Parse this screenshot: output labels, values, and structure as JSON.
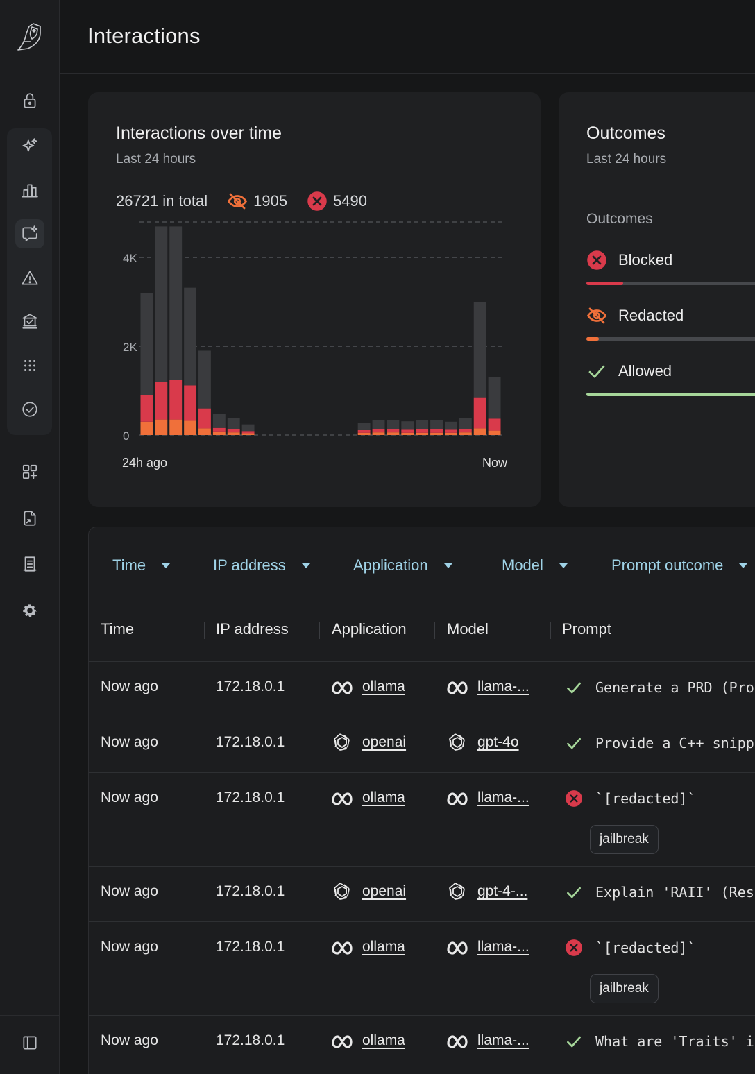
{
  "header": {
    "title": "Interactions"
  },
  "sidebar": {
    "items": [
      {
        "icon": "lock-icon"
      },
      {
        "icon": "sparkle-icon"
      },
      {
        "icon": "bar-chart-icon"
      },
      {
        "icon": "chat-sparkle-icon",
        "active": true
      },
      {
        "icon": "warning-icon"
      },
      {
        "icon": "bank-check-icon"
      },
      {
        "icon": "grid-dots-icon"
      },
      {
        "icon": "check-circle-icon"
      },
      {
        "icon": "apps-add-icon"
      },
      {
        "icon": "file-arrow-icon"
      },
      {
        "icon": "document-icon"
      },
      {
        "icon": "gear-icon"
      },
      {
        "icon": "sidebar-toggle-icon"
      }
    ]
  },
  "interactions_card": {
    "title": "Interactions over time",
    "subtitle": "Last 24 hours",
    "total_label": "26721 in total",
    "redacted_count": "1905",
    "blocked_count": "5490",
    "colors": {
      "allowed": "#3a3b3e",
      "blocked": "#d93a4b",
      "redacted": "#f0703a"
    }
  },
  "chart_data": {
    "type": "bar",
    "stacked": true,
    "title": "Interactions over time",
    "subtitle": "Last 24 hours",
    "x_tick_labels": [
      "24h ago",
      "Now"
    ],
    "y_ticks": [
      "0",
      "2K",
      "4K"
    ],
    "ylim": [
      0,
      4800
    ],
    "grid": true,
    "bins": 25,
    "series": [
      {
        "name": "Redacted",
        "color": "#f0703a",
        "values": [
          300,
          350,
          350,
          320,
          150,
          80,
          60,
          40,
          0,
          0,
          0,
          0,
          0,
          0,
          0,
          50,
          60,
          60,
          50,
          50,
          50,
          50,
          60,
          150,
          100
        ]
      },
      {
        "name": "Blocked",
        "color": "#d93a4b",
        "values": [
          600,
          850,
          900,
          800,
          450,
          80,
          80,
          50,
          0,
          0,
          0,
          0,
          0,
          0,
          0,
          60,
          80,
          80,
          70,
          80,
          80,
          70,
          80,
          700,
          270
        ]
      },
      {
        "name": "Allowed",
        "color": "#3a3b3e",
        "values": [
          2300,
          3500,
          3450,
          2200,
          1300,
          320,
          240,
          150,
          0,
          0,
          0,
          0,
          0,
          0,
          0,
          160,
          200,
          200,
          190,
          210,
          210,
          180,
          240,
          2150,
          930
        ]
      }
    ]
  },
  "outcomes_card": {
    "title": "Outcomes",
    "subtitle": "Last 24 hours",
    "section_label": "Outcomes",
    "items": [
      {
        "label": "Blocked",
        "color": "#d93a4b",
        "fraction": 0.205
      },
      {
        "label": "Redacted",
        "color": "#f0703a",
        "fraction": 0.071
      },
      {
        "label": "Allowed",
        "color": "#a6d69a",
        "fraction": 1.0
      }
    ]
  },
  "filters": [
    "Time",
    "IP address",
    "Application",
    "Model",
    "Prompt outcome"
  ],
  "table": {
    "columns": [
      "Time",
      "IP address",
      "Application",
      "Model",
      "Prompt"
    ],
    "rows": [
      {
        "time": "Now ago",
        "ip": "172.18.0.1",
        "app": "ollama",
        "app_icon": "meta-icon",
        "model": "llama-...",
        "model_icon": "meta-icon",
        "outcome": "allowed",
        "prompt": "Generate a PRD (Pro"
      },
      {
        "time": "Now ago",
        "ip": "172.18.0.1",
        "app": "openai",
        "app_icon": "openai-icon",
        "model": "gpt-4o",
        "model_icon": "openai-icon",
        "outcome": "allowed",
        "prompt": "Provide a C++ snipp"
      },
      {
        "time": "Now ago",
        "ip": "172.18.0.1",
        "app": "ollama",
        "app_icon": "meta-icon",
        "model": "llama-...",
        "model_icon": "meta-icon",
        "outcome": "blocked",
        "prompt": "`[redacted]`",
        "tag": "jailbreak"
      },
      {
        "time": "Now ago",
        "ip": "172.18.0.1",
        "app": "openai",
        "app_icon": "openai-icon",
        "model": "gpt-4-...",
        "model_icon": "openai-icon",
        "outcome": "allowed",
        "prompt": "Explain 'RAII' (Res"
      },
      {
        "time": "Now ago",
        "ip": "172.18.0.1",
        "app": "ollama",
        "app_icon": "meta-icon",
        "model": "llama-...",
        "model_icon": "meta-icon",
        "outcome": "blocked",
        "prompt": "`[redacted]`",
        "tag": "jailbreak"
      },
      {
        "time": "Now ago",
        "ip": "172.18.0.1",
        "app": "ollama",
        "app_icon": "meta-icon",
        "model": "llama-...",
        "model_icon": "meta-icon",
        "outcome": "allowed",
        "prompt": "What are 'Traits' i"
      }
    ]
  }
}
